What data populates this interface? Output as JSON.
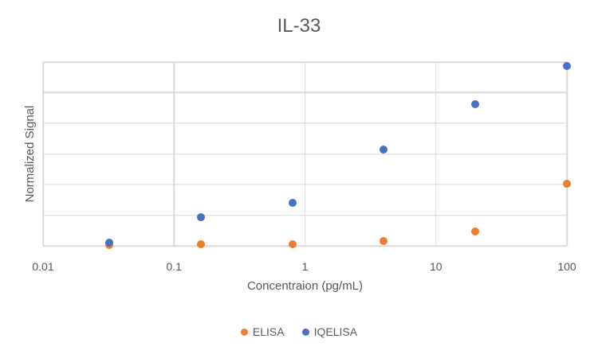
{
  "chart_data": {
    "type": "scatter",
    "title": "IL-33",
    "xlabel": "Concentraion (pg/mL)",
    "ylabel": "Normalized Signal",
    "x_scale": "log10",
    "xlim": [
      0.01,
      100
    ],
    "x_ticks": [
      0.01,
      0.1,
      1,
      10,
      100
    ],
    "x_tick_labels": [
      "0.01",
      "0.1",
      "1",
      "10",
      "100"
    ],
    "ylim": [
      0,
      6
    ],
    "y_gridline_step": 1,
    "y_tick_labels_visible": false,
    "grid": true,
    "legend_position": "bottom",
    "x": [
      0.032,
      0.16,
      0.8,
      4,
      20,
      100
    ],
    "series": [
      {
        "name": "ELISA",
        "color": "#ED7D31",
        "values": [
          0.02,
          0.04,
          0.04,
          0.16,
          0.47,
          2.02
        ]
      },
      {
        "name": "IQELISA",
        "color": "#4472C4",
        "values": [
          0.1,
          0.93,
          1.4,
          3.15,
          4.62,
          5.87
        ]
      }
    ]
  },
  "colors": {
    "grid": "#D9D9D9",
    "text": "#595959",
    "background": "#FFFFFF"
  }
}
